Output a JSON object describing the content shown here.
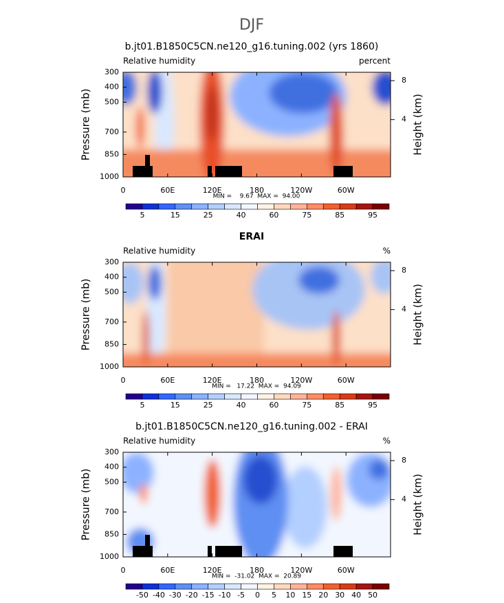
{
  "title": "DJF",
  "panels": [
    {
      "title": "b.jt01.B1850C5CN.ne120_g16.tuning.002 (yrs 1860)",
      "left_label": "Relative humidity",
      "right_label": "percent",
      "y_label": "Pressure (mb)",
      "y2_label": "Height (km)",
      "xlim": [
        0,
        360
      ],
      "xticks": [
        0,
        {
          "value": 60,
          "label": "60E"
        },
        {
          "value": 120,
          "label": "120E"
        },
        180,
        {
          "value": 240,
          "label": "120W"
        },
        {
          "value": 300,
          "label": "60W"
        }
      ],
      "ylim": [
        1000,
        300
      ],
      "yticks": [
        300,
        400,
        500,
        700,
        850,
        1000
      ],
      "y2ticks": [
        8,
        4
      ],
      "stats": "MIN =    9.67  MAX =  94.00",
      "colorbar": {
        "colors": [
          "#24008f",
          "#0f2fd9",
          "#3366ff",
          "#5f8ff2",
          "#8cb2ff",
          "#b3cfff",
          "#d9e8ff",
          "#f2f7ff",
          "#fff2e6",
          "#ffd9bf",
          "#ffb399",
          "#ff8c66",
          "#f2602e",
          "#d93b1a",
          "#a6140f",
          "#7a0000"
        ],
        "levels": [
          5,
          null,
          15,
          null,
          25,
          null,
          40,
          null,
          60,
          null,
          75,
          null,
          85,
          null,
          95
        ]
      }
    },
    {
      "title": "ERAI",
      "left_label": "Relative humidity",
      "right_label": "%",
      "y_label": "Pressure (mb)",
      "y2_label": "Height (km)",
      "xlim": [
        0,
        360
      ],
      "xticks": [
        0,
        {
          "value": 60,
          "label": "60E"
        },
        {
          "value": 120,
          "label": "120E"
        },
        180,
        {
          "value": 240,
          "label": "120W"
        },
        {
          "value": 300,
          "label": "60W"
        }
      ],
      "ylim": [
        1000,
        300
      ],
      "yticks": [
        300,
        400,
        500,
        700,
        850,
        1000
      ],
      "y2ticks": [
        8,
        4
      ],
      "stats": "MIN =   17.22  MAX =  94.09",
      "colorbar": {
        "colors": [
          "#24008f",
          "#0f2fd9",
          "#3366ff",
          "#5f8ff2",
          "#8cb2ff",
          "#b3cfff",
          "#d9e8ff",
          "#f2f7ff",
          "#fff2e6",
          "#ffd9bf",
          "#ffb399",
          "#ff8c66",
          "#f2602e",
          "#d93b1a",
          "#a6140f",
          "#7a0000"
        ],
        "levels": [
          5,
          null,
          15,
          null,
          25,
          null,
          40,
          null,
          60,
          null,
          75,
          null,
          85,
          null,
          95
        ]
      }
    },
    {
      "title": "b.jt01.B1850C5CN.ne120_g16.tuning.002 - ERAI",
      "left_label": "Relative humidity",
      "right_label": "%",
      "y_label": "Pressure (mb)",
      "y2_label": "Height (km)",
      "xlim": [
        0,
        360
      ],
      "xticks": [
        0,
        {
          "value": 60,
          "label": "60E"
        },
        {
          "value": 120,
          "label": "120E"
        },
        180,
        {
          "value": 240,
          "label": "120W"
        },
        {
          "value": 300,
          "label": "60W"
        }
      ],
      "ylim": [
        1000,
        300
      ],
      "yticks": [
        300,
        400,
        500,
        700,
        850,
        1000
      ],
      "y2ticks": [
        8,
        4
      ],
      "stats": "MIN =  -31.02  MAX =  20.89",
      "colorbar": {
        "colors": [
          "#24008f",
          "#0f2fd9",
          "#3366ff",
          "#5f8ff2",
          "#8cb2ff",
          "#b3cfff",
          "#d9e8ff",
          "#f2f7ff",
          "#fff2e6",
          "#ffd9bf",
          "#ffb399",
          "#ff8c66",
          "#f2602e",
          "#d93b1a",
          "#a6140f",
          "#7a0000"
        ],
        "levels": [
          -50,
          -40,
          -30,
          -20,
          -15,
          -10,
          -5,
          0,
          5,
          10,
          15,
          20,
          30,
          40,
          50
        ]
      }
    }
  ]
}
